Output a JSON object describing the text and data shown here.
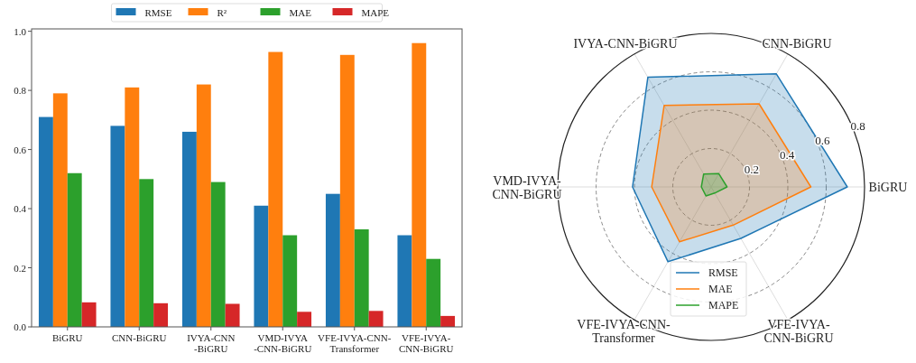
{
  "chart_data": [
    {
      "type": "bar",
      "categories": [
        "BiGRU",
        "CNN-BiGRU",
        "IVYA-CNN\n-BiGRU",
        "VMD-IVYA\n-CNN-BiGRU",
        "VFE-IVYA-CNN-\nTransformer",
        "VFE-IVYA-\nCNN-BiGRU"
      ],
      "series": [
        {
          "name": "RMSE",
          "color": "#1f77b4",
          "values": [
            0.71,
            0.68,
            0.66,
            0.41,
            0.45,
            0.31
          ]
        },
        {
          "name": "R²",
          "color": "#ff7f0e",
          "values": [
            0.79,
            0.81,
            0.82,
            0.93,
            0.92,
            0.96
          ]
        },
        {
          "name": "MAE",
          "color": "#2ca02c",
          "values": [
            0.52,
            0.5,
            0.49,
            0.31,
            0.33,
            0.23
          ]
        },
        {
          "name": "MAPE",
          "color": "#d62728",
          "values": [
            0.083,
            0.08,
            0.078,
            0.051,
            0.054,
            0.037
          ]
        }
      ],
      "ylim": [
        0,
        1.008
      ],
      "yticks": [
        {
          "value": 0,
          "label": "0.0"
        },
        0.2,
        0.4,
        0.6,
        0.8,
        {
          "value": 1,
          "label": "1.0"
        }
      ],
      "grid": false,
      "legend": "top"
    },
    {
      "type": "radar",
      "categories": [
        "CNN-BiGRU",
        "BiGRU",
        "VFE-IVYA-\nCNN-BiGRU",
        "VFE-IVYA-CNN-\nTransformer",
        "VMD-IVYA-\nCNN-BiGRU",
        "IVYA-CNN-BiGRU"
      ],
      "series": [
        {
          "name": "RMSE",
          "color": "#1f77b4",
          "values": [
            0.68,
            0.71,
            0.31,
            0.45,
            0.41,
            0.66
          ]
        },
        {
          "name": "MAE",
          "color": "#ff7f0e",
          "values": [
            0.5,
            0.52,
            0.23,
            0.33,
            0.31,
            0.49
          ]
        },
        {
          "name": "MAPE",
          "color": "#2ca02c",
          "values": [
            0.08,
            0.083,
            0.037,
            0.054,
            0.051,
            0.078
          ]
        }
      ],
      "ylim": [
        0,
        0.8
      ],
      "yticks": [
        0.2,
        0.4,
        0.6,
        0.8
      ],
      "legend": "bottom"
    }
  ]
}
